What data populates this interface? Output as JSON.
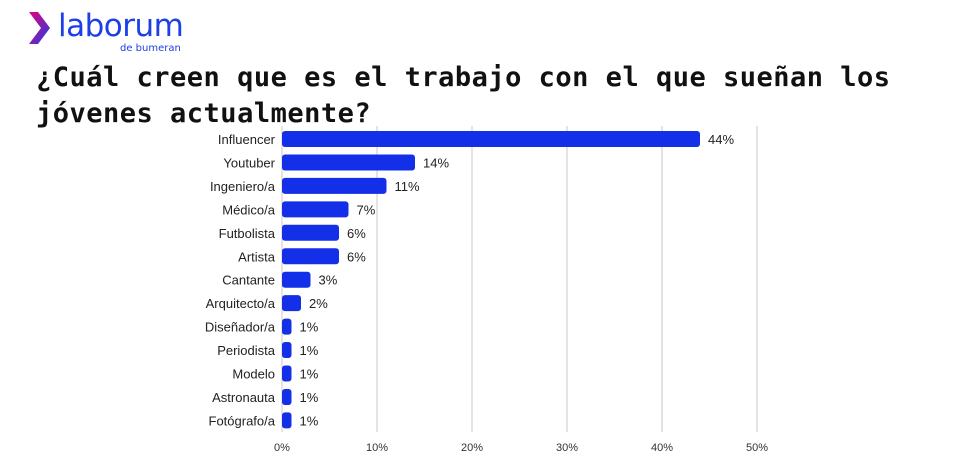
{
  "brand": {
    "name": "laborum",
    "tagline": "de bumeran",
    "color": "#1d3fe6",
    "accent": "#e6007e"
  },
  "title": "¿Cuál creen que es el trabajo con el que sueñan los jóvenes actualmente?",
  "chart_data": {
    "type": "bar",
    "orientation": "horizontal",
    "title": "¿Cuál creen que es el trabajo con el que sueñan los jóvenes actualmente?",
    "categories": [
      "Influencer",
      "Youtuber",
      "Ingeniero/a",
      "Médico/a",
      "Futbolista",
      "Artista",
      "Cantante",
      "Arquitecto/a",
      "Diseñador/a",
      "Periodista",
      "Modelo",
      "Astronauta",
      "Fotógrafo/a"
    ],
    "values": [
      44,
      14,
      11,
      7,
      6,
      6,
      3,
      2,
      1,
      1,
      1,
      1,
      1
    ],
    "data_labels": [
      "44%",
      "14%",
      "11%",
      "7%",
      "6%",
      "6%",
      "3%",
      "2%",
      "1%",
      "1%",
      "1%",
      "1%",
      "1%"
    ],
    "xlim": [
      0,
      50
    ],
    "x_ticks": [
      0,
      10,
      20,
      30,
      40,
      50
    ],
    "x_tick_labels": [
      "0%",
      "10%",
      "20%",
      "30%",
      "40%",
      "50%"
    ],
    "xlabel": "",
    "ylabel": "",
    "grid": true,
    "bar_color": "#1330e8",
    "grid_color": "#c8c8c8",
    "legend": "none"
  }
}
